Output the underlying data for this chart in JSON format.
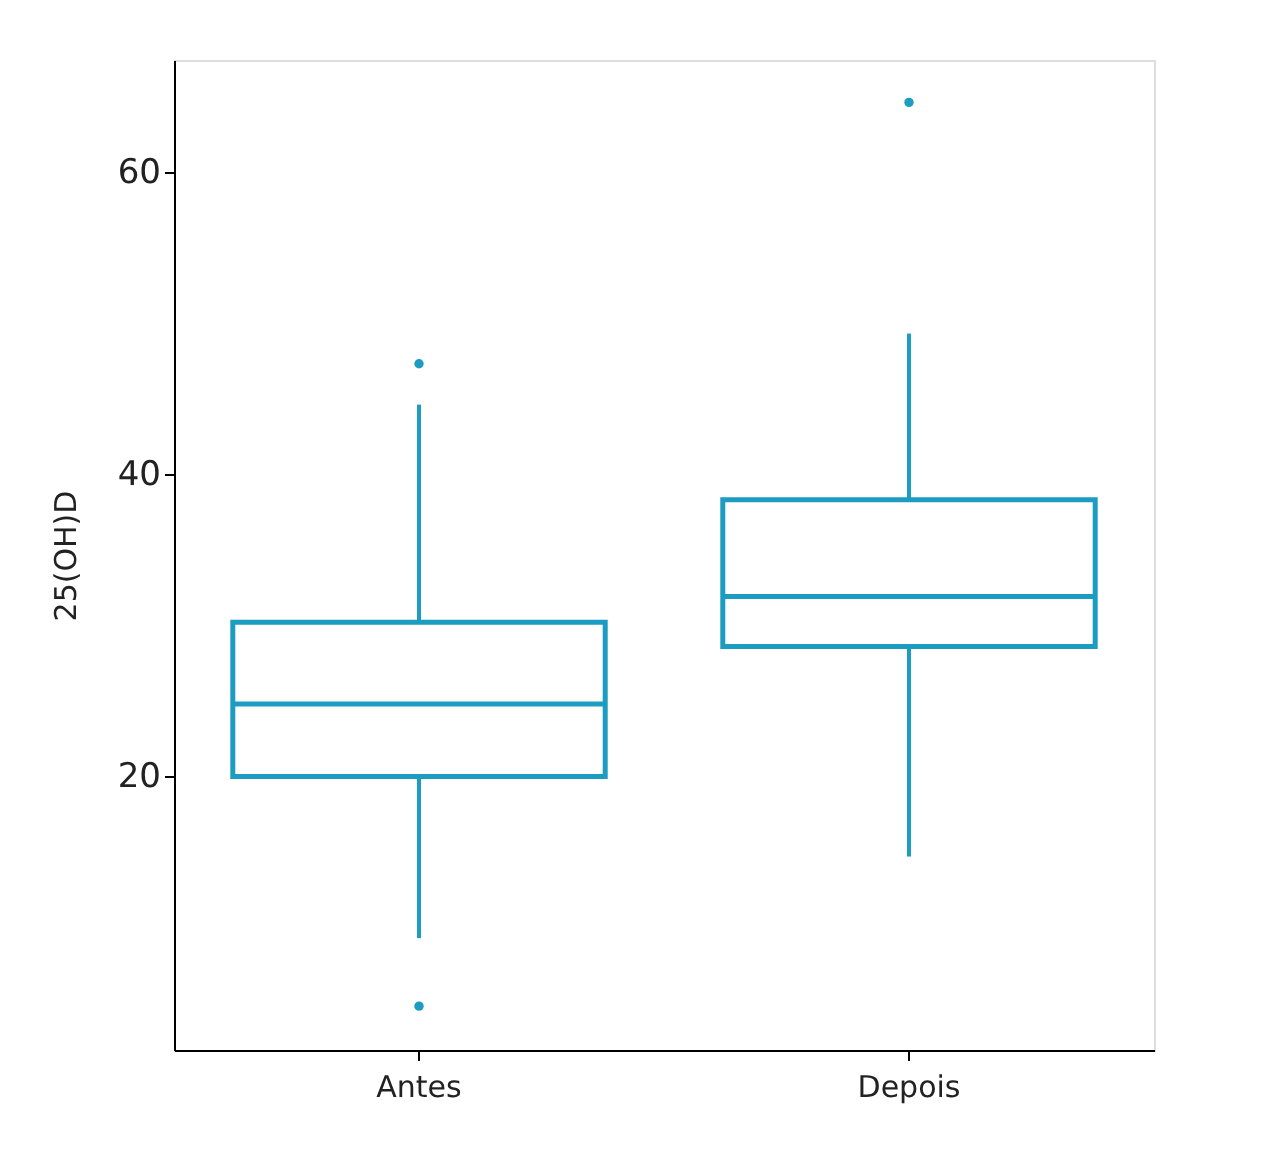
{
  "chart_data": {
    "type": "box",
    "ylabel": "25(OH)D",
    "categories": [
      "Antes",
      "Depois"
    ],
    "series": [
      {
        "color": "#1b9cc0",
        "boxes": [
          {
            "low": 9.3,
            "q1": 20.0,
            "median": 24.8,
            "q3": 30.2,
            "high": 44.6,
            "outliers": [
              47.3,
              4.8
            ]
          },
          {
            "low": 14.7,
            "q1": 28.6,
            "median": 31.9,
            "q3": 38.3,
            "high": 49.3,
            "outliers": [
              64.6
            ]
          }
        ]
      }
    ],
    "ylim": [
      1.9,
      67.4
    ],
    "yticks": [
      20,
      40,
      60
    ],
    "grid": false
  }
}
